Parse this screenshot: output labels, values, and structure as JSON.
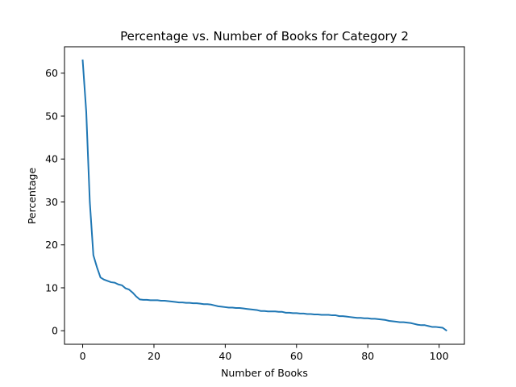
{
  "chart_data": {
    "type": "line",
    "title": "Percentage vs. Number of Books for Category 2",
    "xlabel": "Number of Books",
    "ylabel": "Percentage",
    "xlim": [
      -5.1,
      107.1
    ],
    "ylim": [
      -3.15,
      66.15
    ],
    "xticks": [
      0,
      20,
      40,
      60,
      80,
      100
    ],
    "yticks": [
      0,
      10,
      20,
      30,
      40,
      50,
      60
    ],
    "grid": false,
    "series": [
      {
        "color": "#1f77b4",
        "x": [
          0,
          1,
          2,
          3,
          4,
          5,
          6,
          7,
          8,
          9,
          10,
          11,
          12,
          13,
          14,
          15,
          16,
          17,
          18,
          19,
          20,
          21,
          22,
          23,
          24,
          25,
          26,
          27,
          28,
          29,
          30,
          31,
          32,
          33,
          34,
          35,
          36,
          37,
          38,
          39,
          40,
          41,
          42,
          43,
          44,
          45,
          46,
          47,
          48,
          49,
          50,
          51,
          52,
          53,
          54,
          55,
          56,
          57,
          58,
          59,
          60,
          61,
          62,
          63,
          64,
          65,
          66,
          67,
          68,
          69,
          70,
          71,
          72,
          73,
          74,
          75,
          76,
          77,
          78,
          79,
          80,
          81,
          82,
          83,
          84,
          85,
          86,
          87,
          88,
          89,
          90,
          91,
          92,
          93,
          94,
          95,
          96,
          97,
          98,
          99,
          100,
          101,
          102
        ],
        "values": [
          63.0,
          51.0,
          30.0,
          17.6,
          14.8,
          12.4,
          11.9,
          11.6,
          11.3,
          11.2,
          10.8,
          10.6,
          9.9,
          9.6,
          8.9,
          8.0,
          7.3,
          7.2,
          7.2,
          7.1,
          7.1,
          7.1,
          7.0,
          7.0,
          6.9,
          6.8,
          6.7,
          6.6,
          6.6,
          6.5,
          6.5,
          6.4,
          6.4,
          6.3,
          6.2,
          6.2,
          6.1,
          5.9,
          5.7,
          5.6,
          5.5,
          5.4,
          5.4,
          5.3,
          5.3,
          5.2,
          5.1,
          5.0,
          4.9,
          4.8,
          4.6,
          4.6,
          4.5,
          4.5,
          4.5,
          4.4,
          4.4,
          4.2,
          4.2,
          4.1,
          4.1,
          4.0,
          4.0,
          3.9,
          3.9,
          3.8,
          3.8,
          3.7,
          3.7,
          3.7,
          3.6,
          3.6,
          3.4,
          3.4,
          3.3,
          3.2,
          3.1,
          3.0,
          3.0,
          2.9,
          2.9,
          2.8,
          2.8,
          2.7,
          2.6,
          2.5,
          2.3,
          2.2,
          2.1,
          2.0,
          2.0,
          1.9,
          1.8,
          1.6,
          1.4,
          1.3,
          1.3,
          1.1,
          0.9,
          0.9,
          0.8,
          0.7,
          0.1
        ]
      }
    ]
  }
}
